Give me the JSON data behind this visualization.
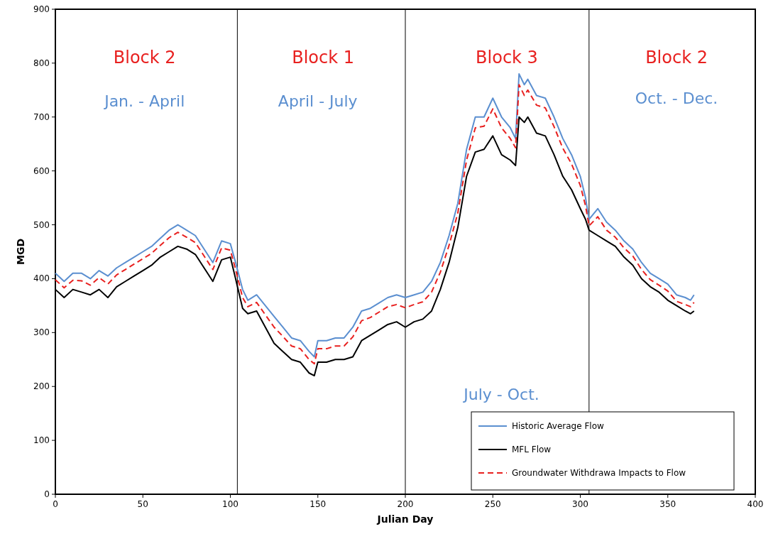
{
  "chart_data": {
    "type": "line",
    "xlabel": "Julian Day",
    "ylabel": "MGD",
    "xlim": [
      0,
      400
    ],
    "xticks": [
      0,
      50,
      100,
      150,
      200,
      250,
      300,
      350,
      400
    ],
    "ylim": [
      0,
      900
    ],
    "yticks": [
      0,
      100,
      200,
      300,
      400,
      500,
      600,
      700,
      800,
      900
    ],
    "grid": false,
    "legend": "bottom right",
    "x": [
      0,
      5,
      10,
      15,
      20,
      25,
      30,
      35,
      40,
      45,
      50,
      55,
      60,
      65,
      70,
      75,
      80,
      85,
      90,
      95,
      100,
      103,
      107,
      110,
      115,
      120,
      125,
      130,
      135,
      140,
      145,
      148,
      150,
      155,
      160,
      165,
      170,
      175,
      180,
      185,
      190,
      195,
      200,
      205,
      210,
      215,
      220,
      225,
      230,
      235,
      240,
      245,
      250,
      255,
      260,
      263,
      265,
      268,
      270,
      275,
      280,
      285,
      290,
      295,
      300,
      303,
      305,
      310,
      315,
      320,
      325,
      330,
      335,
      340,
      345,
      350,
      355,
      360,
      363,
      365
    ],
    "series": [
      {
        "name": "Historic Average Flow",
        "color": "#5b8fd0",
        "line_style": "solid",
        "values": [
          410,
          395,
          410,
          410,
          400,
          415,
          405,
          420,
          430,
          440,
          450,
          460,
          475,
          490,
          500,
          490,
          480,
          455,
          430,
          470,
          465,
          430,
          380,
          360,
          370,
          350,
          330,
          310,
          290,
          285,
          265,
          255,
          285,
          285,
          290,
          290,
          310,
          340,
          345,
          355,
          365,
          370,
          365,
          370,
          375,
          395,
          430,
          480,
          540,
          640,
          700,
          700,
          735,
          700,
          680,
          660,
          780,
          760,
          770,
          740,
          735,
          700,
          660,
          630,
          590,
          550,
          510,
          530,
          505,
          490,
          470,
          455,
          430,
          410,
          400,
          390,
          370,
          365,
          360,
          370
        ]
      },
      {
        "name": "MFL  Flow",
        "color": "#000000",
        "line_style": "solid",
        "values": [
          380,
          365,
          380,
          375,
          370,
          380,
          365,
          385,
          395,
          405,
          415,
          425,
          440,
          450,
          460,
          455,
          445,
          420,
          395,
          435,
          440,
          400,
          345,
          335,
          340,
          310,
          280,
          265,
          250,
          245,
          225,
          220,
          245,
          245,
          250,
          250,
          255,
          285,
          295,
          305,
          315,
          320,
          310,
          320,
          325,
          340,
          380,
          430,
          495,
          590,
          635,
          640,
          665,
          630,
          620,
          610,
          700,
          690,
          700,
          670,
          665,
          630,
          590,
          565,
          530,
          510,
          490,
          480,
          470,
          460,
          440,
          425,
          400,
          385,
          375,
          360,
          350,
          340,
          335,
          340
        ]
      },
      {
        "name": "Groundwater Withdrawa Impacts to Flow",
        "color": "#e8201f",
        "line_style": "dashed",
        "values": [
          398,
          383,
          397,
          396,
          388,
          402,
          390,
          407,
          417,
          427,
          437,
          447,
          462,
          476,
          486,
          477,
          467,
          442,
          417,
          457,
          453,
          417,
          365,
          348,
          356,
          333,
          310,
          293,
          275,
          270,
          250,
          242,
          270,
          270,
          275,
          275,
          292,
          322,
          328,
          338,
          348,
          352,
          346,
          352,
          357,
          375,
          412,
          462,
          522,
          620,
          680,
          683,
          715,
          680,
          660,
          643,
          760,
          740,
          750,
          722,
          717,
          682,
          642,
          613,
          573,
          535,
          498,
          515,
          490,
          477,
          457,
          442,
          417,
          398,
          388,
          377,
          358,
          352,
          348,
          356
        ]
      }
    ],
    "ref_lines": [
      {
        "axis": "x",
        "value": 104,
        "color": "#000000"
      },
      {
        "axis": "x",
        "value": 200,
        "color": "#000000"
      },
      {
        "axis": "x",
        "value": 305,
        "color": "#000000"
      }
    ],
    "annotations": [
      "Block 2",
      "Jan. - April",
      "Block 1",
      "April - July",
      "Block 3",
      "July - Oct.",
      "Block 2",
      "Oct. - Dec."
    ]
  }
}
